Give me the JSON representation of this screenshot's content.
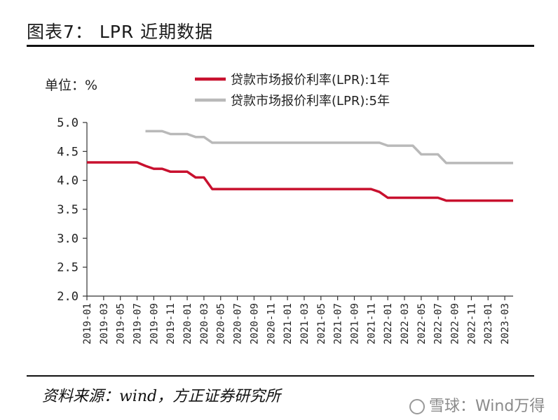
{
  "figure": {
    "title": "图表7： LPR 近期数据",
    "source": "资料来源：wind，方正证券研究所",
    "watermark": "雪球：Wind万得"
  },
  "chart_data": {
    "type": "line",
    "unit_label": "单位：%",
    "ylim": [
      2.0,
      5.0
    ],
    "yticks": [
      "5.0",
      "4.5",
      "4.0",
      "3.5",
      "3.0",
      "2.5",
      "2.0"
    ],
    "x": [
      "2019-01",
      "2019-02",
      "2019-03",
      "2019-04",
      "2019-05",
      "2019-06",
      "2019-07",
      "2019-08",
      "2019-09",
      "2019-10",
      "2019-11",
      "2019-12",
      "2020-01",
      "2020-02",
      "2020-03",
      "2020-04",
      "2020-05",
      "2020-06",
      "2020-07",
      "2020-08",
      "2020-09",
      "2020-10",
      "2020-11",
      "2020-12",
      "2021-01",
      "2021-02",
      "2021-03",
      "2021-04",
      "2021-05",
      "2021-06",
      "2021-07",
      "2021-08",
      "2021-09",
      "2021-10",
      "2021-11",
      "2021-12",
      "2022-01",
      "2022-02",
      "2022-03",
      "2022-04",
      "2022-05",
      "2022-06",
      "2022-07",
      "2022-08",
      "2022-09",
      "2022-10",
      "2022-11",
      "2022-12",
      "2023-01",
      "2023-02",
      "2023-03",
      "2023-04"
    ],
    "xtick_labels": [
      "2019-01",
      "2019-03",
      "2019-05",
      "2019-07",
      "2019-09",
      "2019-11",
      "2020-01",
      "2020-03",
      "2020-05",
      "2020-07",
      "2020-09",
      "2020-11",
      "2021-01",
      "2021-03",
      "2021-05",
      "2021-07",
      "2021-09",
      "2021-11",
      "2022-01",
      "2022-03",
      "2022-05",
      "2022-07",
      "2022-09",
      "2022-11",
      "2023-01",
      "2023-03"
    ],
    "series": [
      {
        "name": "贷款市场报价利率(LPR):1年",
        "color": "#c8102e",
        "values": [
          4.31,
          4.31,
          4.31,
          4.31,
          4.31,
          4.31,
          4.31,
          4.25,
          4.2,
          4.2,
          4.15,
          4.15,
          4.15,
          4.05,
          4.05,
          3.85,
          3.85,
          3.85,
          3.85,
          3.85,
          3.85,
          3.85,
          3.85,
          3.85,
          3.85,
          3.85,
          3.85,
          3.85,
          3.85,
          3.85,
          3.85,
          3.85,
          3.85,
          3.85,
          3.85,
          3.8,
          3.7,
          3.7,
          3.7,
          3.7,
          3.7,
          3.7,
          3.7,
          3.65,
          3.65,
          3.65,
          3.65,
          3.65,
          3.65,
          3.65,
          3.65,
          3.65
        ]
      },
      {
        "name": "贷款市场报价利率(LPR):5年",
        "color": "#b9b9b9",
        "values": [
          null,
          null,
          null,
          null,
          null,
          null,
          null,
          4.85,
          4.85,
          4.85,
          4.8,
          4.8,
          4.8,
          4.75,
          4.75,
          4.65,
          4.65,
          4.65,
          4.65,
          4.65,
          4.65,
          4.65,
          4.65,
          4.65,
          4.65,
          4.65,
          4.65,
          4.65,
          4.65,
          4.65,
          4.65,
          4.65,
          4.65,
          4.65,
          4.65,
          4.65,
          4.6,
          4.6,
          4.6,
          4.6,
          4.45,
          4.45,
          4.45,
          4.3,
          4.3,
          4.3,
          4.3,
          4.3,
          4.3,
          4.3,
          4.3,
          4.3
        ]
      }
    ]
  }
}
